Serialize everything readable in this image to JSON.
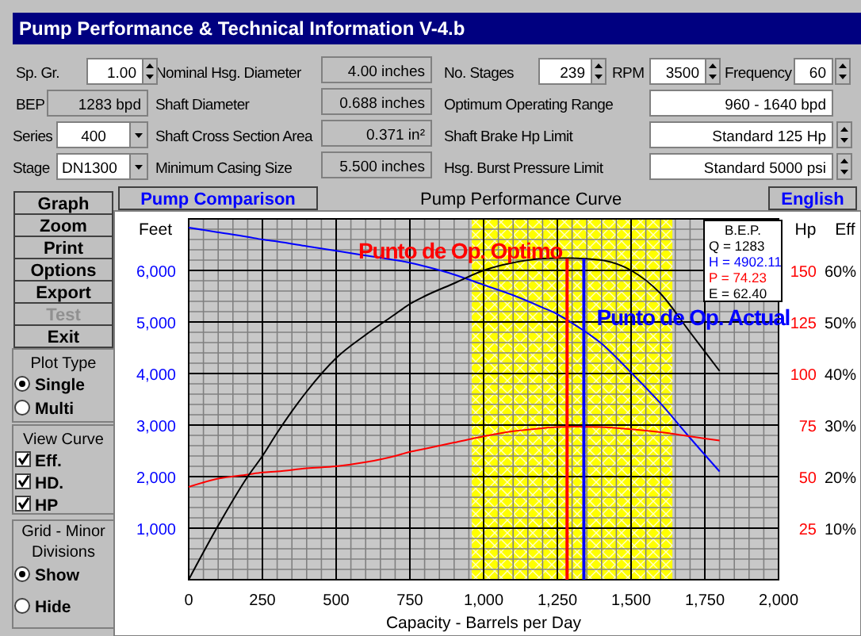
{
  "chart_data": [
    {
      "type": "other",
      "title": "Pump Performance & Technical Information  V-4.b",
      "annotations": [
        "Sp. Gr.",
        "1.00",
        "Nominal Hsg. Diameter",
        "4.00 inches",
        "No. Stages",
        "239",
        "RPM",
        "3500",
        "Frequency",
        "60",
        "BEP",
        "1283 bpd",
        "Shaft Diameter",
        "0.688 inches",
        "Optimum Operating Range",
        "960 - 1640 bpd",
        "Series",
        "400",
        "Shaft Cross Section Area",
        "0.371 in²",
        "Shaft Brake Hp Limit",
        "Standard  125 Hp",
        "Stage",
        "DN1300",
        "Minimum Casing Size",
        "5.500 inches",
        "Hsg. Burst Pressure Limit",
        "Standard 5000 psi",
        "Graph",
        "Zoom",
        "Print",
        "Options",
        "Export",
        "Test",
        "Exit",
        "Plot Type",
        "Single",
        "Multi",
        "View Curve",
        "Eff.",
        "HD.",
        "HP",
        "Grid - Minor Divisions",
        "Show",
        "Hide",
        "Pump Comparison",
        "English"
      ]
    },
    {
      "type": "line",
      "title": "Pump Performance Curve",
      "xlabel": "Capacity - Barrels per Day",
      "ylabel": "Feet",
      "y2label": "Hp",
      "y3label": "Eff",
      "x": [
        0,
        100,
        200,
        250,
        300,
        400,
        500,
        600,
        700,
        750,
        800,
        900,
        1000,
        1100,
        1200,
        1250,
        1300,
        1400,
        1500,
        1600,
        1700,
        1800
      ],
      "series": [
        {
          "color": "#0000ff",
          "values": [
            6830,
            6740,
            6650,
            6600,
            6560,
            6470,
            6380,
            6290,
            6200,
            6150,
            6080,
            5920,
            5720,
            5520,
            5280,
            5150,
            4980,
            4580,
            4020,
            3420,
            2750,
            2100
          ]
        },
        {
          "color": "#ff0000",
          "axis": "y2",
          "values": [
            45,
            49,
            51,
            52,
            52.5,
            54,
            55,
            57,
            60,
            62,
            63.5,
            66.5,
            69.5,
            72,
            73.5,
            74,
            74.2,
            74,
            73,
            71.5,
            69.5,
            67.5
          ]
        },
        {
          "color": "#000000",
          "axis": "y3",
          "values": [
            0,
            10.5,
            20,
            24,
            28.5,
            36.5,
            43,
            47.5,
            51.5,
            53.5,
            55,
            57.5,
            60,
            61.5,
            62.3,
            62.4,
            62.4,
            62,
            60,
            55.5,
            48,
            40.5
          ]
        }
      ],
      "xlim": [
        0,
        2000
      ],
      "xticks": [
        0,
        250,
        500,
        750,
        {
          "value": 1000,
          "label": "1,000"
        },
        {
          "value": 1250,
          "label": "1,250"
        },
        {
          "value": 1500,
          "label": "1,500"
        },
        {
          "value": 1750,
          "label": "1,750"
        },
        {
          "value": 2000,
          "label": "2,000"
        }
      ],
      "ylim": [
        0,
        7000
      ],
      "yticks": [
        {
          "value": 1000,
          "label": "1,000"
        },
        {
          "value": 2000,
          "label": "2,000"
        },
        {
          "value": 3000,
          "label": "3,000"
        },
        {
          "value": 4000,
          "label": "4,000"
        },
        {
          "value": 5000,
          "label": "5,000"
        },
        {
          "value": 6000,
          "label": "6,000"
        }
      ],
      "y2lim": [
        0,
        175
      ],
      "y2ticks": [
        25,
        50,
        75,
        100,
        125,
        150
      ],
      "y3lim": [
        0,
        70
      ],
      "y3ticks": [
        {
          "value": 10,
          "label": "10%"
        },
        {
          "value": 20,
          "label": "20%"
        },
        {
          "value": 30,
          "label": "30%"
        },
        {
          "value": 40,
          "label": "40%"
        },
        {
          "value": 50,
          "label": "50%"
        },
        {
          "value": 60,
          "label": "60%"
        }
      ],
      "bands": [
        {
          "axis": "x",
          "from": 960,
          "to": 1640,
          "color": "#ffff00"
        }
      ],
      "ref_lines": [
        {
          "axis": "x",
          "value": 1283,
          "label": "Punto de Op. Optimo",
          "color": "#ff0000"
        },
        {
          "axis": "x",
          "value": 1340,
          "label": "Punto de Op. Actual",
          "color": "#0000ff"
        }
      ],
      "annotations": [
        "B.E.P.",
        "Q = 1283",
        "H = 4902.11",
        "P = 74.23",
        "E = 62.40"
      ],
      "grid": true
    }
  ]
}
